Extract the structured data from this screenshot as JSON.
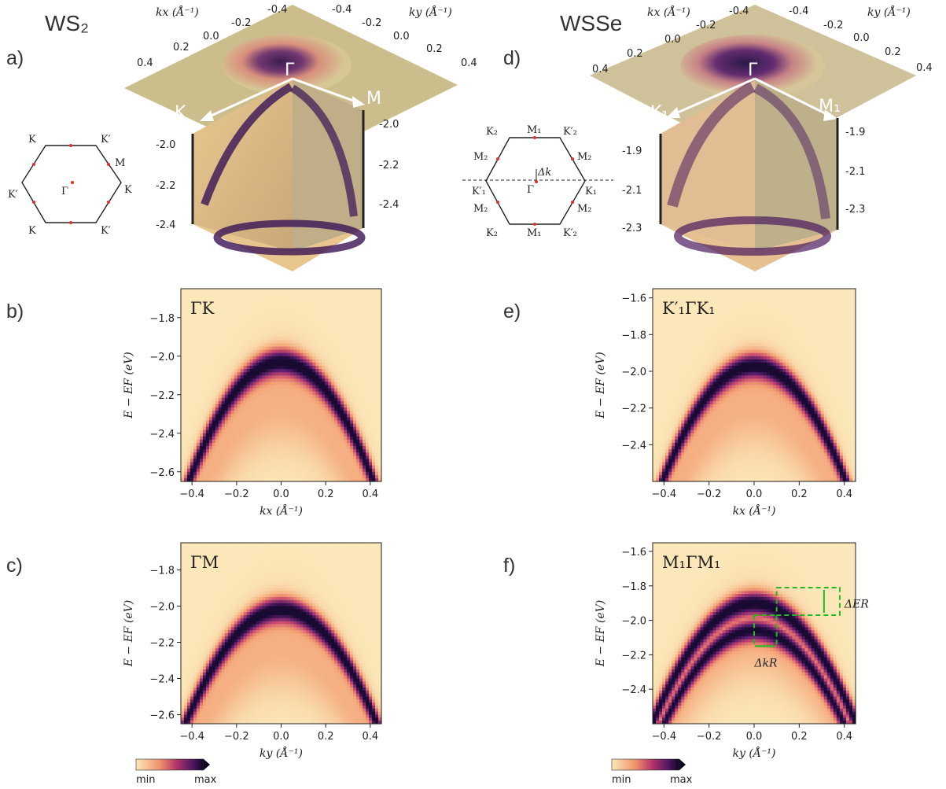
{
  "materials": {
    "left": "WS₂",
    "right": "WSSe"
  },
  "panels": {
    "a": "a)",
    "b": "b)",
    "c": "c)",
    "d": "d)",
    "e": "e)",
    "f": "f)"
  },
  "panel_a": {
    "kx_label": "kx (Å⁻¹)",
    "ky_label": "ky (Å⁻¹)",
    "k_ticks_left": [
      "0.4",
      "0.2",
      "0.0",
      "-0.2",
      "-0.4"
    ],
    "k_ticks_right": [
      "-0.4",
      "-0.2",
      "0.0",
      "0.2",
      "0.4"
    ],
    "e_ticks_left": [
      "-2.0",
      "-2.2",
      "-2.4"
    ],
    "e_ticks_right": [
      "-2.0",
      "-2.2",
      "-2.4"
    ],
    "gamma": "Γ",
    "k_point": "K",
    "m_point": "M",
    "bz_labels": {
      "top_left": "K",
      "top_right": "K′",
      "right_up": "M",
      "right": "K",
      "left": "K′",
      "center": "Γ",
      "bottom_left": "K",
      "bottom_right": "K′"
    }
  },
  "panel_d": {
    "kx_label": "kx (Å⁻¹)",
    "ky_label": "ky (Å⁻¹)",
    "k_ticks_left": [
      "0.4",
      "0.2",
      "0.0",
      "-0.2",
      "-0.4"
    ],
    "k_ticks_right": [
      "-0.4",
      "-0.2",
      "0.0",
      "0.2",
      "0.4"
    ],
    "e_ticks_left": [
      "-1.9",
      "-2.1",
      "-2.3"
    ],
    "e_ticks_right": [
      "-1.9",
      "-2.1",
      "-2.3"
    ],
    "gamma": "Γ",
    "k_point": "K₁",
    "m_point": "M₁",
    "bz_labels": {
      "k2_tl": "K₂",
      "m1_top": "M₁",
      "k2p_tr": "K′₂",
      "m2_ul": "M₂",
      "m2_ur": "M₂",
      "k1p_l": "K′₁",
      "k1_r": "K₁",
      "m2_ll": "M₂",
      "m2_lr": "M₂",
      "k2_bl": "K₂",
      "m1_bot": "M₁",
      "k2p_br": "K′₂",
      "center": "Γ",
      "dk": "Δk"
    }
  },
  "chart_data": [
    {
      "panel": "b",
      "type": "heatmap",
      "title": "ΓK",
      "xlabel": "kx (Å⁻¹)",
      "ylabel": "E − EF (eV)",
      "xlim": [
        -0.45,
        0.45
      ],
      "ylim": [
        -2.65,
        -1.65
      ],
      "xticks": [
        -0.4,
        -0.2,
        0.0,
        0.2,
        0.4
      ],
      "yticks": [
        -2.6,
        -2.4,
        -2.2,
        -2.0,
        -1.8
      ],
      "band_top_E": -2.03,
      "band_curvature": 3.6,
      "split": 0.0
    },
    {
      "panel": "c",
      "type": "heatmap",
      "title": "ΓM",
      "xlabel": "ky (Å⁻¹)",
      "ylabel": "E − EF (eV)",
      "xlim": [
        -0.45,
        0.45
      ],
      "ylim": [
        -2.65,
        -1.65
      ],
      "xticks": [
        -0.4,
        -0.2,
        0.0,
        0.2,
        0.4
      ],
      "yticks": [
        -2.6,
        -2.4,
        -2.2,
        -2.0,
        -1.8
      ],
      "band_top_E": -2.02,
      "band_curvature": 3.4,
      "split": 0.0
    },
    {
      "panel": "e",
      "type": "heatmap",
      "title": "K′₁ΓK₁",
      "xlabel": "kx (Å⁻¹)",
      "ylabel": "E − EF (eV)",
      "xlim": [
        -0.45,
        0.45
      ],
      "ylim": [
        -2.6,
        -1.55
      ],
      "xticks": [
        -0.4,
        -0.2,
        0.0,
        0.2,
        0.4
      ],
      "yticks": [
        -2.4,
        -2.2,
        -2.0,
        -1.8,
        -1.6
      ],
      "band_top_E": -1.97,
      "band_curvature": 3.8,
      "split": 0.0
    },
    {
      "panel": "f",
      "type": "heatmap",
      "title": "M₁ΓM₁",
      "xlabel": "ky (Å⁻¹)",
      "ylabel": "E − EF (eV)",
      "xlim": [
        -0.45,
        0.45
      ],
      "ylim": [
        -2.6,
        -1.55
      ],
      "xticks": [
        -0.4,
        -0.2,
        0.0,
        0.2,
        0.4
      ],
      "yticks": [
        -2.4,
        -2.2,
        -2.0,
        -1.8,
        -1.6
      ],
      "band_top_E": -1.9,
      "band_curvature": 3.4,
      "split": 0.1,
      "annotations": {
        "dE": "ΔER",
        "dk": "ΔkR",
        "dE_range": [
          -1.97,
          -1.81
        ],
        "dk_range": [
          0.0,
          0.1
        ]
      }
    }
  ],
  "colorbar": {
    "min": "min",
    "max": "max"
  },
  "colors": {
    "bg": "#fbe7b9",
    "band": "#2a0a4a",
    "mid": "#e46a6a",
    "green": "#22bb22",
    "plane": "#c9bb8a"
  }
}
